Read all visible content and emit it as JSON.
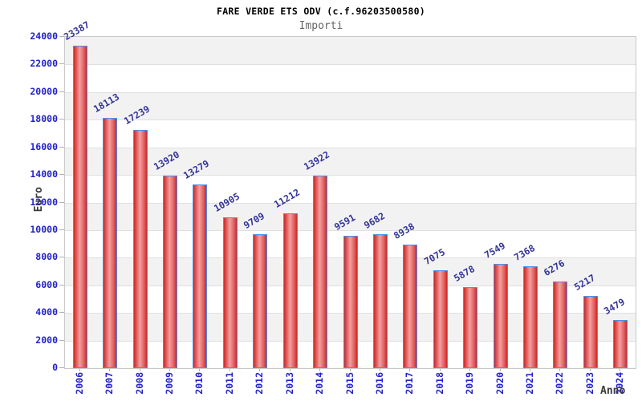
{
  "title": "FARE VERDE ETS ODV (c.f.96203500580)",
  "subtitle": "Importi",
  "chart_data": {
    "type": "bar",
    "title": "FARE VERDE ETS ODV (c.f.96203500580)",
    "subtitle": "Importi",
    "xlabel": "Anno",
    "ylabel": "Euro",
    "categories": [
      "2006",
      "2007",
      "2008",
      "2009",
      "2010",
      "2011",
      "2012",
      "2013",
      "2014",
      "2015",
      "2016",
      "2017",
      "2018",
      "2019",
      "2020",
      "2021",
      "2022",
      "2023",
      "2024"
    ],
    "values": [
      23387,
      18113,
      17239,
      13920,
      13279,
      10905,
      9709,
      11212,
      13922,
      9591,
      9682,
      8938,
      7075,
      5878,
      7549,
      7368,
      6276,
      5217,
      3479
    ],
    "ylim": [
      0,
      24000
    ],
    "ytick_step": 2000,
    "ytick_labels": [
      "0",
      "2000",
      "4000",
      "6000",
      "8000",
      "10000",
      "12000",
      "14000",
      "16000",
      "18000",
      "20000",
      "22000",
      "24000"
    ],
    "bar_value_labels": true,
    "legend": "none",
    "grid": "horizontal-bands",
    "colors": {
      "bar_fill_edge": "#c62b2b",
      "bar_fill_mid": "#f4a0a0",
      "bar_border": "#4d8ef0",
      "tick_label": "#2222cc",
      "value_label": "#333399",
      "band_gray": "#f2f2f2",
      "band_white": "#ffffff",
      "gridline": "#e0e0e0",
      "plot_border": "#c9c9c9",
      "title_color": "#000000",
      "subtitle_color": "#666666",
      "axis_title_color": "#3a3a3a"
    }
  }
}
